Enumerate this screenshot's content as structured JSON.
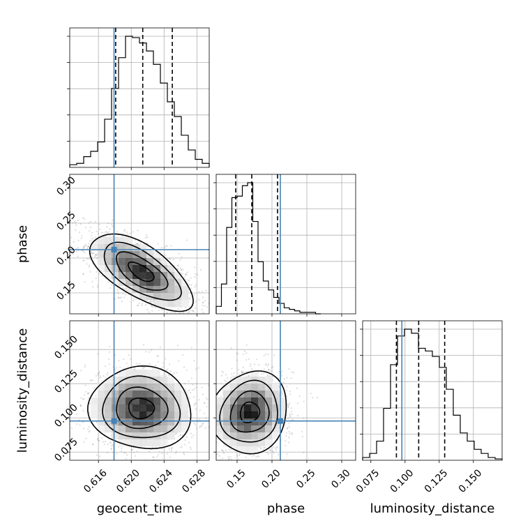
{
  "chart_data": {
    "type": "corner",
    "title": "",
    "parameters": [
      {
        "name": "geocent_time",
        "range": [
          0.6125,
          0.6295
        ],
        "ticks": [
          0.616,
          0.62,
          0.624,
          0.628
        ],
        "tick_labels": [
          "0.616",
          "0.620",
          "0.624",
          "0.628"
        ],
        "truth": 0.6179,
        "quantiles": [
          0.6181,
          0.6214,
          0.625
        ],
        "hist_edges_min": 0.6125,
        "hist_bin_width": 0.00085,
        "hist_counts": [
          2,
          3,
          8,
          12,
          19,
          36,
          59,
          82,
          98,
          97,
          93,
          87,
          77,
          63,
          49,
          38,
          24,
          13,
          6,
          3
        ]
      },
      {
        "name": "phase",
        "range": [
          0.12,
          0.32
        ],
        "ticks": [
          0.15,
          0.2,
          0.25,
          0.3
        ],
        "tick_labels": [
          "0.15",
          "0.20",
          "0.25",
          "0.30"
        ],
        "truth": 0.212,
        "quantiles": [
          0.148,
          0.171,
          0.208
        ],
        "hist_edges_min": 0.12,
        "hist_bin_width": 0.0075,
        "hist_counts": [
          5,
          20,
          58,
          78,
          79,
          86,
          88,
          62,
          35,
          22,
          16,
          11,
          7,
          4,
          3,
          2,
          1,
          1,
          1,
          0
        ]
      },
      {
        "name": "luminosity_distance",
        "range": [
          0.069,
          0.171
        ],
        "ticks": [
          0.075,
          0.1,
          0.125,
          0.15
        ],
        "tick_labels": [
          "0.075",
          "0.100",
          "0.125",
          "0.150"
        ],
        "truth": 0.0977,
        "quantiles": [
          0.0937,
          0.11,
          0.129
        ],
        "hist_edges_min": 0.069,
        "hist_bin_width": 0.0051,
        "hist_counts": [
          2,
          5,
          14,
          38,
          70,
          91,
          96,
          93,
          82,
          80,
          76,
          68,
          52,
          33,
          20,
          14,
          8,
          5,
          2,
          1
        ]
      }
    ],
    "pairs": [
      {
        "x": "geocent_time",
        "y": "phase",
        "center": [
          0.6212,
          0.18
        ],
        "sigma": [
          0.0025,
          0.022
        ],
        "rho": -0.65,
        "truth": [
          0.6179,
          0.212
        ],
        "contour_levels_sigma": [
          0.5,
          1.0,
          1.5,
          2.0
        ]
      },
      {
        "x": "geocent_time",
        "y": "luminosity_distance",
        "center": [
          0.6212,
          0.107
        ],
        "sigma": [
          0.0025,
          0.012
        ],
        "rho": -0.05,
        "truth": [
          0.6179,
          0.0977
        ],
        "contour_levels_sigma": [
          0.5,
          1.0,
          1.5,
          2.0
        ]
      },
      {
        "x": "phase",
        "y": "luminosity_distance",
        "center": [
          0.168,
          0.104
        ],
        "sigma": [
          0.022,
          0.012
        ],
        "rho": 0.1,
        "truth": [
          0.212,
          0.0977
        ],
        "contour_levels_sigma": [
          0.5,
          1.0,
          1.5,
          2.0
        ]
      }
    ],
    "colors": {
      "truth": "#4682b4",
      "hist": "#000000",
      "density": "#000000",
      "points": "#808080"
    },
    "grid": true,
    "legend": "none"
  }
}
